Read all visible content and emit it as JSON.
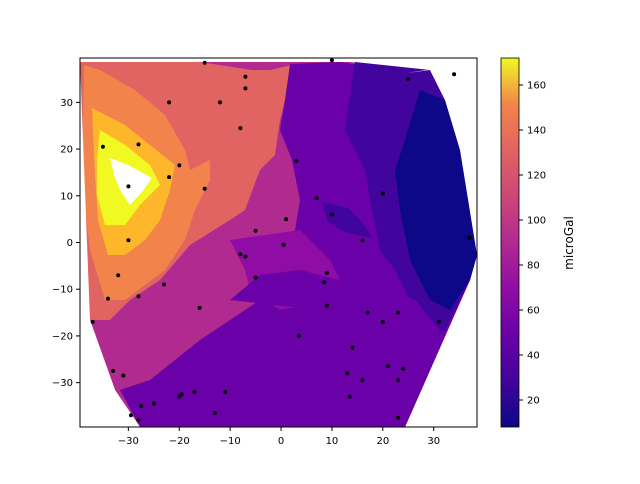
{
  "chart_data": {
    "type": "contour",
    "title": "",
    "xlabel": "",
    "ylabel": "",
    "xlim": [
      -39.5,
      38.5
    ],
    "ylim": [
      -39.5,
      39.5
    ],
    "x_ticks": [
      -30,
      -20,
      -10,
      0,
      10,
      20,
      30
    ],
    "y_ticks": [
      -30,
      -20,
      -10,
      0,
      10,
      20,
      30
    ],
    "colorbar": {
      "label": "microGal",
      "min": 8,
      "max": 172,
      "ticks": [
        20,
        40,
        60,
        80,
        100,
        120,
        140,
        160
      ],
      "colormap": "plasma"
    },
    "filled_level_regions": [
      {
        "level": 136,
        "vertices": [
          [
            -37,
            27
          ],
          [
            -31,
            25
          ],
          [
            -22,
            17
          ],
          [
            -19,
            13
          ],
          [
            -24,
            8
          ],
          [
            -34,
            -9
          ],
          [
            -37,
            -12
          ],
          [
            -38,
            5
          ]
        ]
      },
      {
        "level": 151,
        "vertices": [
          [
            -36,
            28
          ],
          [
            -30,
            22
          ],
          [
            -25,
            16
          ],
          [
            -24,
            10
          ],
          [
            -30,
            5
          ],
          [
            -35,
            0
          ],
          [
            -36,
            10
          ]
        ]
      },
      {
        "level": 167,
        "vertices": [
          [
            -35,
            24
          ],
          [
            -28,
            18
          ],
          [
            -24,
            12
          ],
          [
            -28,
            5
          ],
          [
            -33,
            3
          ],
          [
            -35,
            10
          ]
        ]
      },
      {
        "level": 45,
        "vertices": [
          [
            -4,
            24
          ],
          [
            0,
            32
          ],
          [
            10,
            38
          ],
          [
            28,
            28
          ],
          [
            38,
            15
          ],
          [
            38,
            -2
          ],
          [
            30,
            -20
          ],
          [
            24,
            -25
          ],
          [
            14,
            -32
          ],
          [
            5,
            -28
          ],
          [
            4,
            -20
          ],
          [
            10,
            -12
          ],
          [
            10,
            -2
          ],
          [
            5,
            5
          ],
          [
            2,
            14
          ]
        ]
      },
      {
        "level": 30,
        "vertices": [
          [
            12,
            22
          ],
          [
            15,
            35
          ],
          [
            28,
            36
          ],
          [
            32,
            25
          ],
          [
            35,
            12
          ],
          [
            38,
            -3
          ],
          [
            33,
            -18
          ],
          [
            25,
            -24
          ],
          [
            22,
            -10
          ],
          [
            18,
            2
          ],
          [
            14,
            10
          ]
        ]
      },
      {
        "level": 45,
        "vertices": [
          [
            -8,
            -5
          ],
          [
            5,
            -8
          ],
          [
            10,
            -20
          ],
          [
            5,
            -28
          ],
          [
            -10,
            -20
          ],
          [
            -15,
            -12
          ]
        ]
      },
      {
        "level": 45,
        "vertices": [
          [
            -2,
            -24
          ],
          [
            10,
            -22
          ],
          [
            15,
            -30
          ],
          [
            10,
            -38
          ],
          [
            -5,
            -33
          ]
        ]
      }
    ],
    "white_regions": [
      {
        "vertices": [
          [
            -34,
            16
          ],
          [
            -30,
            13
          ],
          [
            -28,
            8
          ],
          [
            -32,
            14
          ]
        ]
      },
      {
        "vertices": [
          [
            25,
            36
          ],
          [
            30,
            34
          ],
          [
            32,
            24
          ],
          [
            35,
            20
          ],
          [
            38,
            10
          ],
          [
            38,
            39
          ],
          [
            28,
            39
          ]
        ]
      }
    ],
    "points": [
      [
        -35,
        20.5
      ],
      [
        -30,
        12
      ],
      [
        -28,
        21
      ],
      [
        -20,
        16.5
      ],
      [
        -22,
        14
      ],
      [
        -15,
        11.5
      ],
      [
        -12,
        30
      ],
      [
        -22,
        30
      ],
      [
        -15,
        38.5
      ],
      [
        -7,
        35.5
      ],
      [
        -7,
        33
      ],
      [
        -8,
        24.5
      ],
      [
        -30,
        0.5
      ],
      [
        -32,
        -7
      ],
      [
        -28,
        -11.5
      ],
      [
        -23,
        -9
      ],
      [
        -16,
        -14
      ],
      [
        -34,
        -12
      ],
      [
        -37,
        -17
      ],
      [
        -5,
        2.5
      ],
      [
        -8,
        -2.5
      ],
      [
        -7,
        -3
      ],
      [
        -5,
        -7.5
      ],
      [
        0.5,
        -0.5
      ],
      [
        1,
        5
      ],
      [
        3,
        17.5
      ],
      [
        7,
        9.5
      ],
      [
        10,
        6
      ],
      [
        16,
        0.5
      ],
      [
        20,
        10.5
      ],
      [
        25,
        35
      ],
      [
        34,
        36
      ],
      [
        37,
        1
      ],
      [
        10,
        39
      ],
      [
        9,
        -6.5
      ],
      [
        8.5,
        -8.5
      ],
      [
        9,
        -13.5
      ],
      [
        3.5,
        -20
      ],
      [
        17,
        -15
      ],
      [
        20,
        -17
      ],
      [
        23,
        -15
      ],
      [
        14,
        -22.5
      ],
      [
        13,
        -28
      ],
      [
        16,
        -29.5
      ],
      [
        13.5,
        -33
      ],
      [
        21,
        -26.5
      ],
      [
        23,
        -29.5
      ],
      [
        24,
        -27
      ],
      [
        31,
        -17
      ],
      [
        -31,
        -28.5
      ],
      [
        -33,
        -27.5
      ],
      [
        -29.5,
        -37
      ],
      [
        -27.5,
        -35
      ],
      [
        -25,
        -34.5
      ],
      [
        -19.5,
        -32.5
      ],
      [
        -20,
        -33
      ],
      [
        -17,
        -32
      ],
      [
        -11,
        -32
      ],
      [
        -13,
        -36.5
      ],
      [
        -28,
        -38
      ],
      [
        23,
        -37.5
      ]
    ]
  }
}
